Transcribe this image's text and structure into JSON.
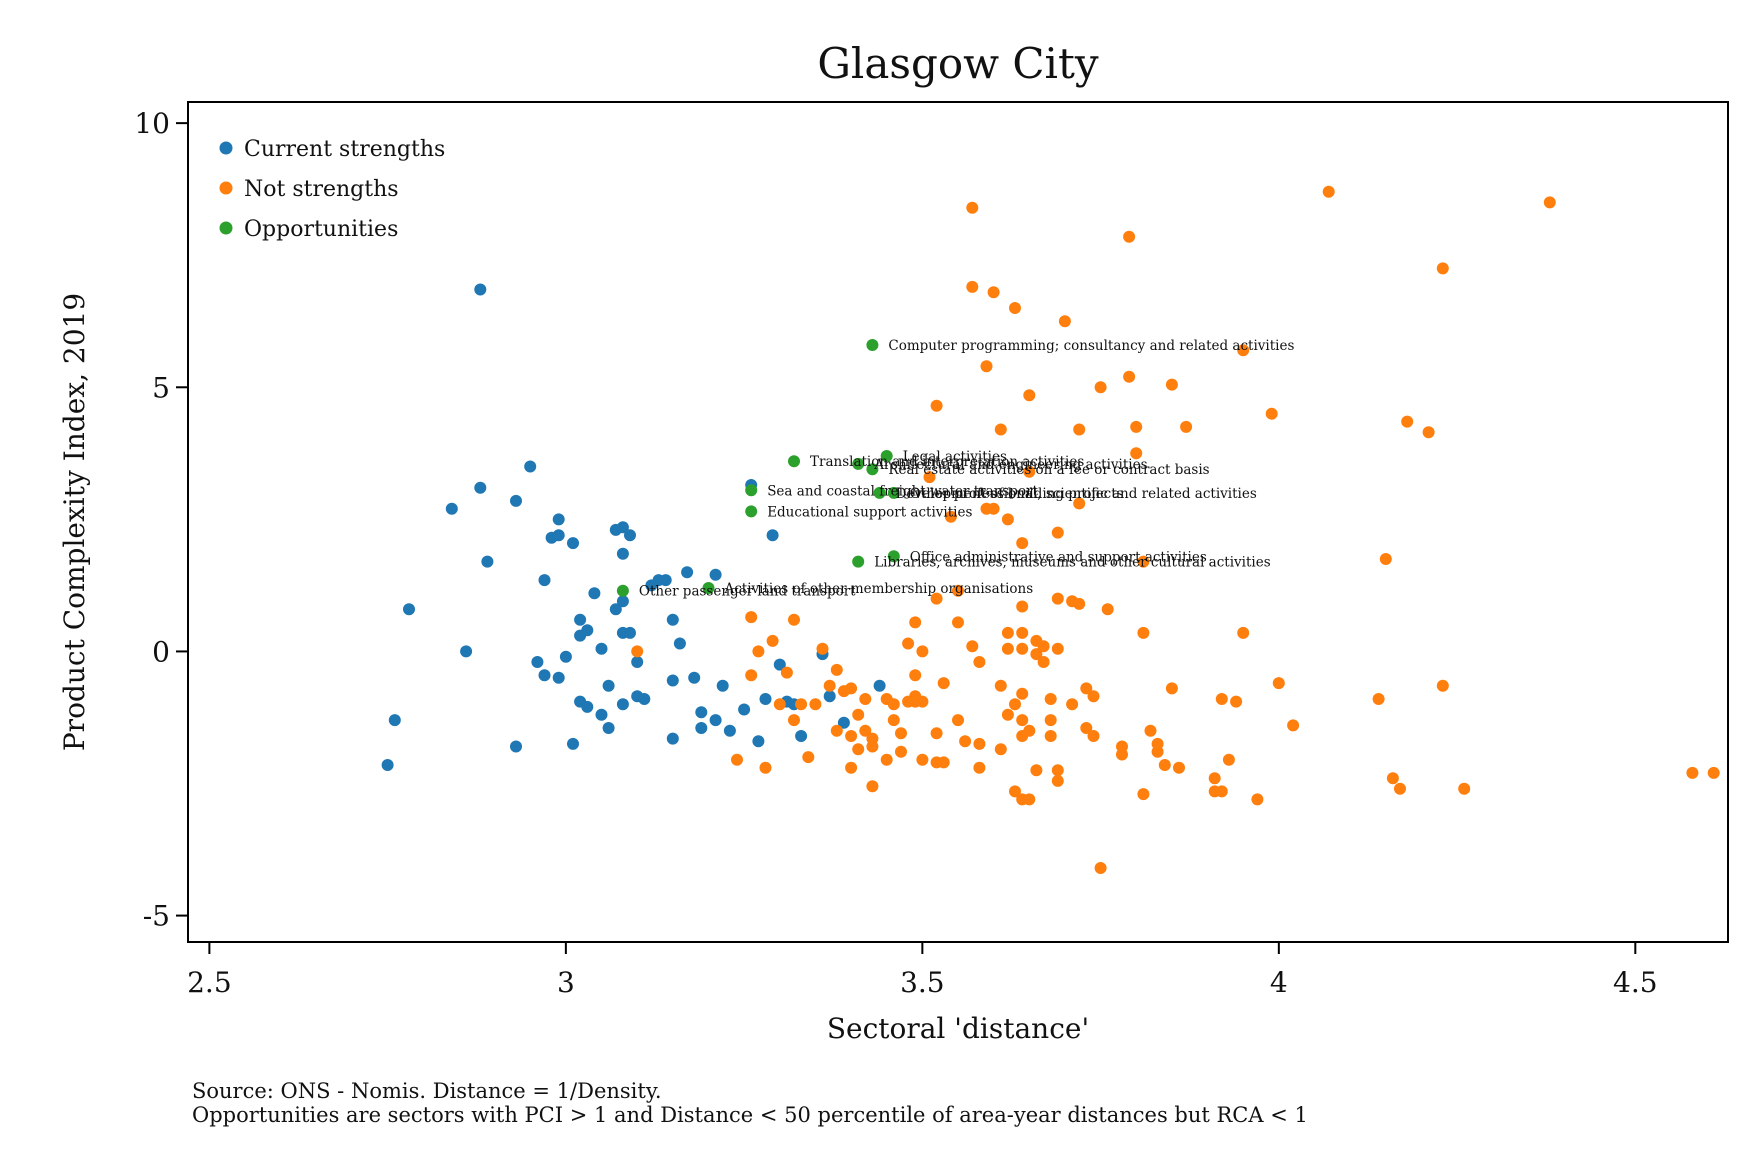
{
  "chart_data": {
    "type": "scatter",
    "title": "Glasgow City",
    "xlabel": "Sectoral 'distance'",
    "ylabel": "Product Complexity Index, 2019",
    "xlim": [
      2.47,
      4.63
    ],
    "ylim": [
      -5.5,
      10.4
    ],
    "xticks": [
      2.5,
      3,
      3.5,
      4,
      4.5
    ],
    "xtick_labels": [
      "2.5",
      "3",
      "3.5",
      "4",
      "4.5"
    ],
    "yticks": [
      -5,
      0,
      5,
      10
    ],
    "ytick_labels": [
      "-5",
      "0",
      "5",
      "10"
    ],
    "grid": false,
    "legend_position": "top-left",
    "source_note": "Source: ONS - Nomis. Distance = 1/Density.",
    "definition_note": "Opportunities are sectors with PCI > 1 and Distance < 50 percentile of area-year distances but RCA < 1",
    "series": [
      {
        "name": "Current strengths",
        "color": "#1f77b4",
        "points": [
          [
            2.78,
            0.8
          ],
          [
            2.76,
            -1.3
          ],
          [
            2.75,
            -2.15
          ],
          [
            2.84,
            2.7
          ],
          [
            2.86,
            0.0
          ],
          [
            2.88,
            6.85
          ],
          [
            2.88,
            3.1
          ],
          [
            2.89,
            1.7
          ],
          [
            2.93,
            -1.8
          ],
          [
            2.93,
            2.85
          ],
          [
            2.95,
            3.5
          ],
          [
            2.96,
            -0.2
          ],
          [
            2.97,
            -0.45
          ],
          [
            2.97,
            1.35
          ],
          [
            2.98,
            2.15
          ],
          [
            2.99,
            -0.5
          ],
          [
            2.99,
            2.5
          ],
          [
            2.99,
            2.2
          ],
          [
            3.0,
            -0.1
          ],
          [
            3.01,
            2.05
          ],
          [
            3.01,
            -1.75
          ],
          [
            3.02,
            0.6
          ],
          [
            3.02,
            0.3
          ],
          [
            3.02,
            -0.95
          ],
          [
            3.03,
            0.4
          ],
          [
            3.03,
            -1.05
          ],
          [
            3.04,
            1.1
          ],
          [
            3.05,
            0.05
          ],
          [
            3.05,
            -1.2
          ],
          [
            3.06,
            -0.65
          ],
          [
            3.06,
            -1.45
          ],
          [
            3.07,
            0.8
          ],
          [
            3.07,
            2.3
          ],
          [
            3.08,
            2.35
          ],
          [
            3.08,
            1.85
          ],
          [
            3.08,
            0.95
          ],
          [
            3.08,
            0.35
          ],
          [
            3.08,
            -1.0
          ],
          [
            3.09,
            2.2
          ],
          [
            3.09,
            0.35
          ],
          [
            3.1,
            -0.85
          ],
          [
            3.1,
            -0.2
          ],
          [
            3.11,
            -0.9
          ],
          [
            3.12,
            1.25
          ],
          [
            3.13,
            1.35
          ],
          [
            3.14,
            1.35
          ],
          [
            3.15,
            0.6
          ],
          [
            3.15,
            -0.55
          ],
          [
            3.15,
            -1.65
          ],
          [
            3.16,
            0.15
          ],
          [
            3.17,
            1.5
          ],
          [
            3.18,
            -0.5
          ],
          [
            3.19,
            -1.45
          ],
          [
            3.19,
            -1.15
          ],
          [
            3.21,
            1.45
          ],
          [
            3.21,
            -1.3
          ],
          [
            3.22,
            -0.65
          ],
          [
            3.23,
            -1.5
          ],
          [
            3.25,
            -1.1
          ],
          [
            3.26,
            3.15
          ],
          [
            3.27,
            -1.7
          ],
          [
            3.28,
            -0.9
          ],
          [
            3.29,
            2.2
          ],
          [
            3.3,
            -0.25
          ],
          [
            3.31,
            -0.95
          ],
          [
            3.32,
            -1.0
          ],
          [
            3.33,
            -1.6
          ],
          [
            3.36,
            -0.05
          ],
          [
            3.37,
            -0.85
          ],
          [
            3.39,
            -1.35
          ],
          [
            3.44,
            -0.65
          ]
        ]
      },
      {
        "name": "Not strengths",
        "color": "#ff7f0e",
        "points": [
          [
            3.1,
            0.0
          ],
          [
            3.24,
            -2.05
          ],
          [
            3.26,
            0.65
          ],
          [
            3.26,
            -0.45
          ],
          [
            3.27,
            0.0
          ],
          [
            3.28,
            -2.2
          ],
          [
            3.29,
            0.2
          ],
          [
            3.3,
            -1.0
          ],
          [
            3.31,
            -0.4
          ],
          [
            3.32,
            0.6
          ],
          [
            3.32,
            -1.3
          ],
          [
            3.33,
            -1.0
          ],
          [
            3.34,
            -2.0
          ],
          [
            3.35,
            -1.0
          ],
          [
            3.36,
            0.05
          ],
          [
            3.37,
            -0.65
          ],
          [
            3.38,
            -0.35
          ],
          [
            3.38,
            -1.5
          ],
          [
            3.39,
            -0.75
          ],
          [
            3.4,
            -0.7
          ],
          [
            3.4,
            -2.2
          ],
          [
            3.4,
            -1.6
          ],
          [
            3.41,
            -1.2
          ],
          [
            3.41,
            -1.85
          ],
          [
            3.42,
            -0.9
          ],
          [
            3.42,
            -1.5
          ],
          [
            3.43,
            -1.65
          ],
          [
            3.43,
            -2.55
          ],
          [
            3.43,
            -1.8
          ],
          [
            3.45,
            -2.05
          ],
          [
            3.45,
            -0.9
          ],
          [
            3.46,
            -1.0
          ],
          [
            3.46,
            -1.3
          ],
          [
            3.47,
            -1.55
          ],
          [
            3.47,
            -1.9
          ],
          [
            3.48,
            -0.95
          ],
          [
            3.48,
            0.15
          ],
          [
            3.49,
            0.55
          ],
          [
            3.49,
            -0.45
          ],
          [
            3.49,
            -0.85
          ],
          [
            3.49,
            -0.95
          ],
          [
            3.5,
            0.0
          ],
          [
            3.5,
            -2.05
          ],
          [
            3.5,
            -0.95
          ],
          [
            3.51,
            3.3
          ],
          [
            3.52,
            4.65
          ],
          [
            3.52,
            -1.55
          ],
          [
            3.52,
            1.0
          ],
          [
            3.52,
            -2.1
          ],
          [
            3.53,
            -2.1
          ],
          [
            3.53,
            -0.6
          ],
          [
            3.54,
            2.55
          ],
          [
            3.55,
            0.55
          ],
          [
            3.55,
            -1.3
          ],
          [
            3.55,
            1.15
          ],
          [
            3.56,
            -1.7
          ],
          [
            3.57,
            6.9
          ],
          [
            3.57,
            8.4
          ],
          [
            3.57,
            0.1
          ],
          [
            3.58,
            -0.2
          ],
          [
            3.58,
            -1.75
          ],
          [
            3.58,
            -2.2
          ],
          [
            3.59,
            5.4
          ],
          [
            3.59,
            2.7
          ],
          [
            3.6,
            6.8
          ],
          [
            3.6,
            2.7
          ],
          [
            3.61,
            -0.65
          ],
          [
            3.61,
            -1.85
          ],
          [
            3.61,
            4.2
          ],
          [
            3.62,
            0.35
          ],
          [
            3.62,
            0.05
          ],
          [
            3.62,
            -1.2
          ],
          [
            3.62,
            2.5
          ],
          [
            3.63,
            6.5
          ],
          [
            3.63,
            -2.65
          ],
          [
            3.63,
            -1.0
          ],
          [
            3.64,
            -1.3
          ],
          [
            3.64,
            -2.8
          ],
          [
            3.64,
            0.35
          ],
          [
            3.64,
            0.05
          ],
          [
            3.64,
            -0.8
          ],
          [
            3.64,
            -1.6
          ],
          [
            3.64,
            2.05
          ],
          [
            3.64,
            0.85
          ],
          [
            3.65,
            -2.8
          ],
          [
            3.65,
            4.85
          ],
          [
            3.65,
            -1.5
          ],
          [
            3.65,
            3.4
          ],
          [
            3.66,
            -0.05
          ],
          [
            3.66,
            -2.25
          ],
          [
            3.66,
            0.2
          ],
          [
            3.67,
            0.1
          ],
          [
            3.67,
            -0.2
          ],
          [
            3.68,
            -0.9
          ],
          [
            3.68,
            -1.3
          ],
          [
            3.68,
            -1.6
          ],
          [
            3.69,
            0.05
          ],
          [
            3.69,
            -2.25
          ],
          [
            3.69,
            -2.45
          ],
          [
            3.69,
            1.0
          ],
          [
            3.69,
            2.25
          ],
          [
            3.7,
            6.25
          ],
          [
            3.71,
            -1.0
          ],
          [
            3.71,
            0.95
          ],
          [
            3.72,
            4.2
          ],
          [
            3.72,
            2.8
          ],
          [
            3.72,
            0.9
          ],
          [
            3.73,
            -0.7
          ],
          [
            3.73,
            -1.45
          ],
          [
            3.74,
            -1.6
          ],
          [
            3.74,
            -0.85
          ],
          [
            3.75,
            5.0
          ],
          [
            3.75,
            -4.1
          ],
          [
            3.76,
            0.8
          ],
          [
            3.78,
            -1.8
          ],
          [
            3.78,
            -1.95
          ],
          [
            3.79,
            5.2
          ],
          [
            3.79,
            7.85
          ],
          [
            3.8,
            4.25
          ],
          [
            3.8,
            3.75
          ],
          [
            3.81,
            1.7
          ],
          [
            3.81,
            0.35
          ],
          [
            3.81,
            -2.7
          ],
          [
            3.82,
            -1.5
          ],
          [
            3.83,
            -1.75
          ],
          [
            3.83,
            -1.9
          ],
          [
            3.84,
            -2.15
          ],
          [
            3.85,
            -0.7
          ],
          [
            3.85,
            5.05
          ],
          [
            3.86,
            -2.2
          ],
          [
            3.87,
            4.25
          ],
          [
            3.91,
            -2.65
          ],
          [
            3.91,
            -2.4
          ],
          [
            3.92,
            -0.9
          ],
          [
            3.92,
            -2.65
          ],
          [
            3.93,
            -2.05
          ],
          [
            3.94,
            -0.95
          ],
          [
            3.95,
            0.35
          ],
          [
            3.95,
            5.7
          ],
          [
            3.97,
            -2.8
          ],
          [
            3.99,
            4.5
          ],
          [
            4.0,
            -0.6
          ],
          [
            4.02,
            -1.4
          ],
          [
            4.07,
            8.7
          ],
          [
            4.14,
            -0.9
          ],
          [
            4.15,
            1.75
          ],
          [
            4.16,
            -2.4
          ],
          [
            4.17,
            -2.6
          ],
          [
            4.18,
            4.35
          ],
          [
            4.21,
            4.15
          ],
          [
            4.23,
            7.25
          ],
          [
            4.23,
            -0.65
          ],
          [
            4.26,
            -2.6
          ],
          [
            4.38,
            8.5
          ],
          [
            4.58,
            -2.3
          ],
          [
            4.61,
            -2.3
          ]
        ]
      },
      {
        "name": "Opportunities",
        "color": "#2ca02c",
        "points": [
          [
            3.43,
            5.8
          ],
          [
            3.45,
            3.7
          ],
          [
            3.32,
            3.6
          ],
          [
            3.41,
            3.55
          ],
          [
            3.43,
            3.45
          ],
          [
            3.26,
            3.05
          ],
          [
            3.44,
            3.0
          ],
          [
            3.46,
            3.0
          ],
          [
            3.26,
            2.65
          ],
          [
            3.41,
            1.7
          ],
          [
            3.46,
            1.8
          ],
          [
            3.08,
            1.15
          ],
          [
            3.2,
            1.2
          ]
        ]
      }
    ],
    "annotations": [
      {
        "text": "Computer programming; consultancy and related activities",
        "x": 3.43,
        "y": 5.8
      },
      {
        "text": "Legal activities",
        "x": 3.45,
        "y": 3.7
      },
      {
        "text": "Translation and interpretation activities",
        "x": 3.32,
        "y": 3.6
      },
      {
        "text": "Architectural and engineering activities",
        "x": 3.41,
        "y": 3.55
      },
      {
        "text": "Real estate activities on a fee or contract basis",
        "x": 3.43,
        "y": 3.45
      },
      {
        "text": "Sea and coastal freight water transport",
        "x": 3.26,
        "y": 3.05
      },
      {
        "text": "Development of building projects",
        "x": 3.44,
        "y": 3.0
      },
      {
        "text": "Other professional, scientific and related activities",
        "x": 3.46,
        "y": 3.0
      },
      {
        "text": "Educational support activities",
        "x": 3.26,
        "y": 2.65
      },
      {
        "text": "Libraries, archives, museums and other cultural activities",
        "x": 3.41,
        "y": 1.7
      },
      {
        "text": "Office administrative and support activities",
        "x": 3.46,
        "y": 1.8
      },
      {
        "text": "Other passenger land transport",
        "x": 3.08,
        "y": 1.15
      },
      {
        "text": "Activities of other membership organisations",
        "x": 3.2,
        "y": 1.2
      }
    ]
  }
}
